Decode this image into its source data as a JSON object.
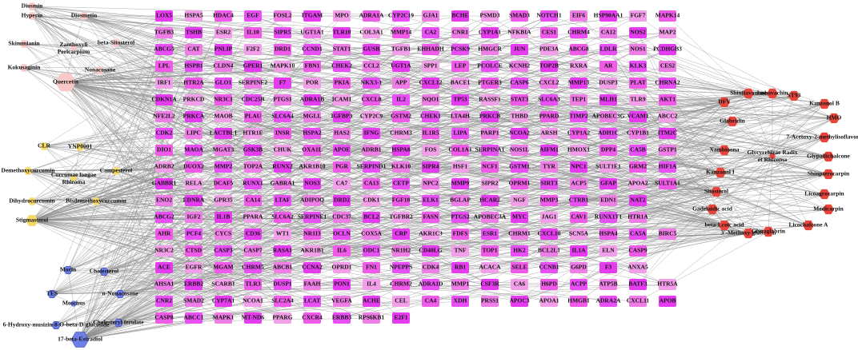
{
  "compounds": {
    "pink": [
      "Diosmin",
      "Hyperin",
      "Diosmetin",
      "Skimmianin",
      "beta-Sitosterol",
      "Kokusaginin",
      "Nonacosane",
      "Quercetin"
    ],
    "yellow": [
      "CLR",
      "YNP0001",
      "Demethoxycurcumin",
      "Campesterol",
      "Dihydrocurcumin",
      "Bisdemethoxycurcumin",
      "Stigmasterol"
    ],
    "blue": [
      "Morin",
      "Cholesterol",
      "TES",
      "n-Nonacosane",
      "6-Hydroxy-musizin-8-O-beta-D-glucoside",
      "Cholesteryl ferulate",
      "17-beta-Estradiol"
    ],
    "red": [
      "DFV",
      "Shinflavanone",
      "Isobavachin",
      "ST93",
      "Kanzonol B",
      "Glabridin",
      "HMO",
      "Xambioona",
      "7-Acetoxy-2-methylisoflavone",
      "Glypallichalcone",
      "Kanzonol I",
      "Shinpterocarpin",
      "Sitosterol",
      "Licoagrocarpin",
      "Gadelaidic acid",
      "Medicarpin",
      "beta-Lcoic acid",
      "Licochalcone A",
      "3'-Methoxy-glabridin",
      "Glyzaglabrin"
    ]
  },
  "herbs": [
    "Zanthoxyli Pericarpium",
    "Curcumae longae Rhizoma",
    "Moschus",
    "Glycyrrhizae Radix et Rhizoma"
  ],
  "targets": [
    [
      "LOX5",
      "HSPA5",
      "HDAC4",
      "EGF",
      "FOSL2",
      "ITGAM",
      "MPO",
      "ADRA1A",
      "CYP2C19",
      "GJA1",
      "BCHE",
      "PSMD3",
      "SMAD3",
      "NOTCH1",
      "EIF6",
      "HSP90AA1",
      "FGF7",
      "MAPK14"
    ],
    [
      "TGFB3",
      "TSHB",
      "ESR2",
      "IL10",
      "SIPR5",
      "UGT1A1",
      "TLR10",
      "COL3A1",
      "MMP14",
      "CA2",
      "CNR1",
      "CYP1A1",
      "NFKBIA",
      "CES1",
      "CHRM4",
      "CA12",
      "NOS2",
      "MAP2"
    ],
    [
      "ABCG5",
      "CAT",
      "PNLIP",
      "F2F2",
      "DRD1",
      "CCND1",
      "STAT1",
      "GUSB",
      "TGFB1",
      "EHHADH",
      "PCSK9",
      "HMGCR",
      "JUN",
      "PDE3A",
      "ABCG8",
      "LDLR",
      "NOS1",
      "PCDHGB3"
    ],
    [
      "LPL",
      "HSPB1",
      "CLDN4",
      "GPER1",
      "MAPK10",
      "FBN1",
      "CHEK2",
      "CCL2",
      "UGT1A",
      "SPP1",
      "LEP",
      "PCOLCE",
      "KCNH2",
      "TOP2B",
      "RXRA",
      "AR",
      "KLK3",
      "CES2"
    ],
    [
      "IRF1",
      "HTR2A",
      "GLO1",
      "SERPINE2",
      "F7",
      "POR",
      "PKIA",
      "NKX3-1",
      "APP",
      "CXCL12",
      "BACE1",
      "PTGER3",
      "CASP6",
      "CXCL2",
      "MMP13",
      "DUSP3",
      "PLAT",
      "CHRNA2"
    ],
    [
      "CDKN1A",
      "PRKCD",
      "NR3C1",
      "CDC25B",
      "PTGS1",
      "ADRA1B",
      "ICAM1",
      "CXCL8",
      "IL2",
      "NQO1",
      "TP53",
      "RASSF1",
      "STAT3",
      "SLC6A3",
      "TEP1",
      "MLH1",
      "TLR9",
      "AKT1"
    ],
    [
      "NFE2L2",
      "PRKCA",
      "MAOB",
      "PLAU",
      "SLC6A4",
      "MGLL",
      "IGFBP3",
      "CYP2C9",
      "GSTM2",
      "CHEK1",
      "LTA4H",
      "PRKCB",
      "THBD",
      "PPARD",
      "TIMP2",
      "APOBEC3G",
      "VCAM1",
      "ABCC2"
    ],
    [
      "CDK2",
      "LIPC",
      "LACTBL1",
      "HTR1E",
      "INSR",
      "HSPA2",
      "HAS2",
      "IFNG",
      "CHRM3",
      "IL1R5",
      "LIPA",
      "PARP1",
      "NCOA2",
      "ARSH",
      "CYP1A2",
      "ADH1C",
      "CYP1B1",
      "ITM2C"
    ],
    [
      "DIO1",
      "MAOA",
      "MGAT3",
      "GSK3B",
      "CHUK",
      "OXA1L",
      "APOE",
      "ADRB1",
      "HSPA8",
      "FOS",
      "COL1A1",
      "SERPINA1",
      "NOS1L",
      "AIFM1",
      "HMOX1",
      "DPP4",
      "CA5B",
      "GSTP1"
    ],
    [
      "ADRB2",
      "DUOX2",
      "MMP2",
      "TOP2A",
      "RUNX2",
      "AKR1B10",
      "PGR",
      "SERPIND1",
      "KLK10",
      "SIPR4",
      "HSF1",
      "NCF1",
      "GSTM1",
      "TYR",
      "NPC1",
      "SULT1E1",
      "GRM2",
      "HIF1A"
    ],
    [
      "GABBR1",
      "RELA",
      "DCAF5",
      "RUNX1",
      "GABRA1",
      "NOS3",
      "CA7",
      "CA13",
      "CETP",
      "NPC2",
      "MMP9",
      "SIPR2",
      "OPRM1",
      "SIRT3",
      "ACP5",
      "GFAP",
      "APOA2",
      "SULT1A1"
    ],
    [
      "ENO2",
      "EDNRA",
      "GPR35",
      "CA14",
      "LTAF",
      "ADIPOQ",
      "DRD2",
      "CDK1",
      "FGF10",
      "ELK1",
      "BGLAP",
      "HCAR2",
      "NGF",
      "MMP3",
      "CTRB1",
      "EDN1",
      "NAT2"
    ],
    [
      "ABCG2",
      "IGF2",
      "IL1B",
      "PPARA",
      "SLC6A2",
      "SERPINE1",
      "CDC37",
      "BCL2",
      "TGFBR2",
      "FASN",
      "PTGS2",
      "APOBEC3A",
      "MYC",
      "JAG1",
      "CAV1",
      "RUNX1T1",
      "HTR1A"
    ],
    [
      "AHR",
      "PCF4",
      "CYCS",
      "CD36",
      "WT1",
      "NR1I3",
      "OCLN",
      "COX5A",
      "CRP",
      "AKR1C3",
      "FDFS",
      "ESR1",
      "CHRM1",
      "CXCL10",
      "SCN5A",
      "HSPA4",
      "CA5A",
      "BIRC5"
    ],
    [
      "NR3C2",
      "CTSD",
      "CASP3",
      "CASP7",
      "RASA1",
      "AKR1B1",
      "IL6",
      "ODC1",
      "NR1H2",
      "CD40LG",
      "TNF",
      "TOP1",
      "HK2",
      "BCL2L1",
      "IL1A",
      "ELN",
      "CASP9"
    ],
    [
      "ACE",
      "EGFR",
      "MGAM",
      "CHRM5",
      "ABCB1",
      "CCNA2",
      "OPRD1",
      "FN1",
      "NPEPPS",
      "CDK4",
      "RB1",
      "ACACA",
      "SELE",
      "CCNB1",
      "G6PD",
      "F3",
      "ANXA5"
    ],
    [
      "AHSA1",
      "ERBB2",
      "SCARB1",
      "TLR3",
      "DUSP1",
      "FAAH",
      "PON1",
      "IL4",
      "CHRM2",
      "ADRA1D",
      "MMP1",
      "CSF3R",
      "CA6",
      "H6PD",
      "ACPP",
      "ATP5B",
      "BATF3",
      "HTR5A"
    ],
    [
      "CNR2",
      "SMAD2",
      "CYP7A1",
      "NCOA1",
      "SLC2A4",
      "LCAT",
      "VEGFA",
      "ACHE",
      "CEL",
      "CA4",
      "XDH",
      "PRSS1",
      "APOC3",
      "APOA1",
      "HMGB1",
      "ADRA2A",
      "CXCL11",
      "APOB"
    ],
    [
      "CASP8",
      "ABCC1",
      "MAPK1",
      "MT-ND6",
      "PPARG",
      "CXCR4",
      "ERBB3",
      "RPS6KB1",
      "E2F1"
    ]
  ]
}
